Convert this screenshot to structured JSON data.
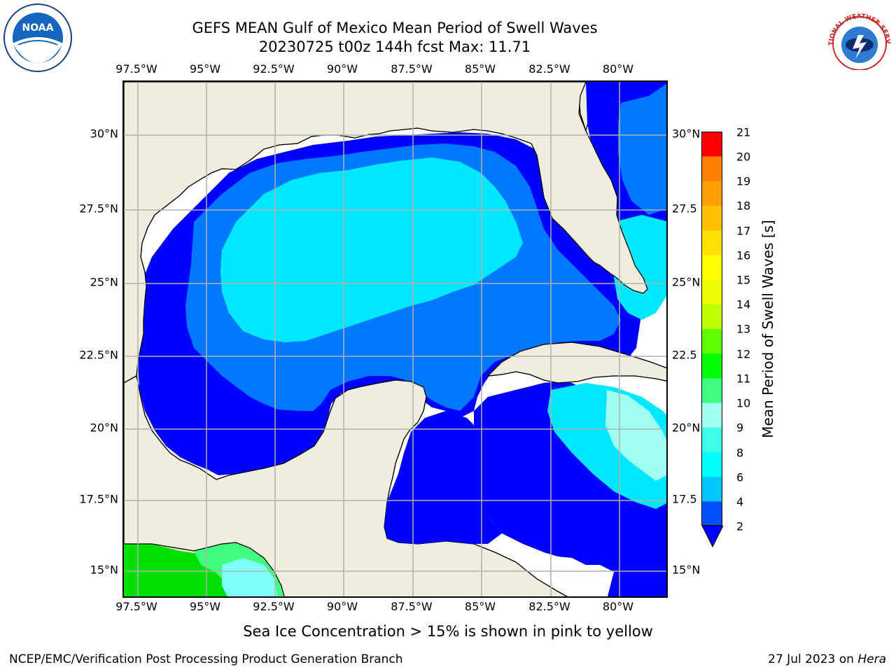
{
  "header": {
    "title_line1": "GEFS MEAN Gulf of Mexico Mean Period of Swell Waves",
    "title_line2": "20230725 t00z 144h fcst   Max: 11.71"
  },
  "logos": {
    "noaa": "NOAA",
    "nws": "NATIONAL WEATHER SERVICE"
  },
  "map": {
    "lon_labels": [
      "97.5°W",
      "95°W",
      "92.5°W",
      "90°W",
      "87.5°W",
      "85°W",
      "82.5°W",
      "80°W"
    ],
    "lat_labels_left": [
      "30°N",
      "27.5°N",
      "25°N",
      "22.5°N",
      "20°N",
      "17.5°N",
      "15°N"
    ],
    "lat_labels_right": [
      "30°N",
      "27.5",
      "25°N",
      "22.5",
      "20°N",
      "17.5",
      "15°N"
    ],
    "land_color": "#efedde",
    "coast_color": "#000000",
    "grid_color": "#b0b0b0"
  },
  "colorbar": {
    "label": "Mean Period of Swell Waves [s]",
    "ticks": [
      "2",
      "4",
      "6",
      "8",
      "9",
      "10",
      "11",
      "12",
      "13",
      "14",
      "15",
      "16",
      "17",
      "18",
      "19",
      "20",
      "21"
    ],
    "colors": [
      "#0050ff",
      "#00c8ff",
      "#00ffff",
      "#40ffe8",
      "#a0fff0",
      "#40ff80",
      "#00ff00",
      "#60ff00",
      "#c0ff00",
      "#ecff00",
      "#ffff00",
      "#ffe000",
      "#ffc000",
      "#ffa000",
      "#ff8000",
      "#ff4000",
      "#ff0000"
    ],
    "extend_color": "#0000ff"
  },
  "footer": {
    "ice_note": "Sea Ice Concentration > 15% is shown in pink to yellow",
    "branch": "NCEP/EMC/Verification Post Processing Product Generation Branch",
    "date": "27 Jul 2023 on",
    "host": "Hera"
  }
}
